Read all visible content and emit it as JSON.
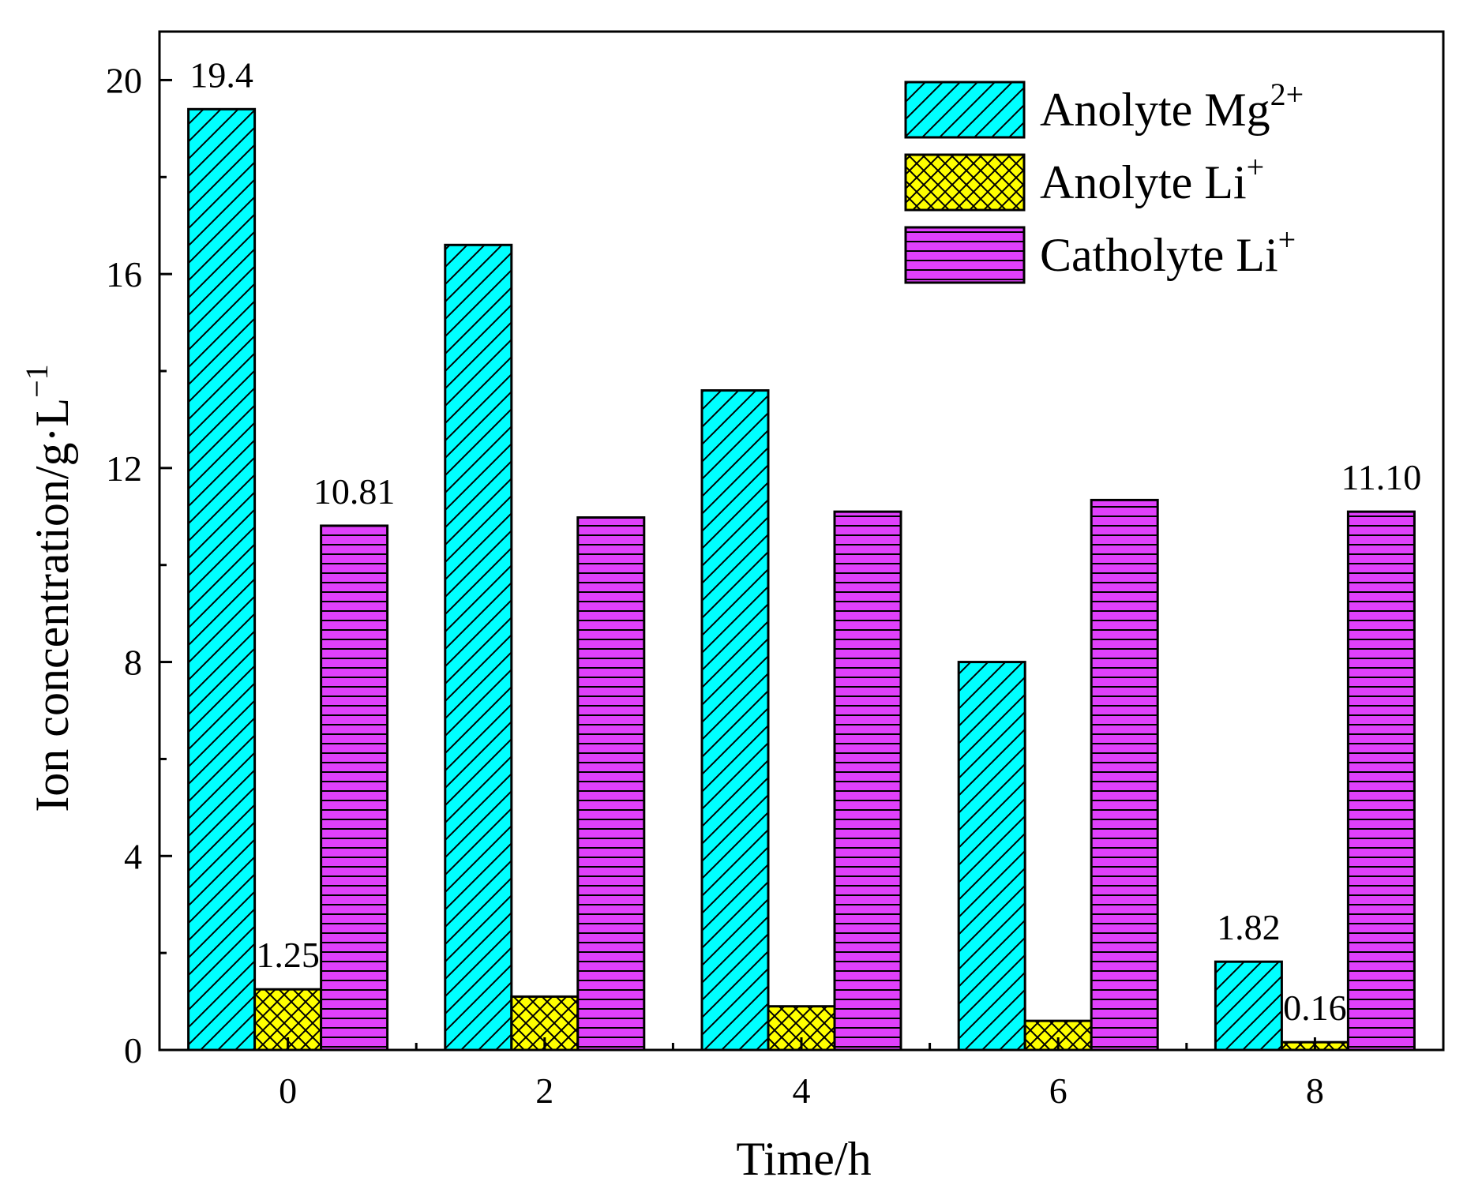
{
  "chart_data": {
    "type": "bar",
    "xlabel": "Time/h",
    "ylabel": "Ion concentration/g·L",
    "ylabel_sup": "−1",
    "categories": [
      "0",
      "2",
      "4",
      "6",
      "8"
    ],
    "ylim": [
      0,
      21
    ],
    "yticks": [
      0,
      4,
      8,
      12,
      16,
      20
    ],
    "yticks_labels": [
      "0",
      "4",
      "8",
      "12",
      "16",
      "20"
    ],
    "series": [
      {
        "name": "Anolyte Mg",
        "sup": "2+",
        "values": [
          19.4,
          16.6,
          13.6,
          8.0,
          1.82
        ],
        "color": "#00ffff",
        "pattern": "diagonal"
      },
      {
        "name": "Anolyte Li",
        "sup": "+",
        "values": [
          1.25,
          1.1,
          0.9,
          0.6,
          0.16
        ],
        "color": "#ffff00",
        "pattern": "crosshatch"
      },
      {
        "name": "Catholyte Li",
        "sup": "+",
        "values": [
          10.81,
          10.98,
          11.1,
          11.34,
          11.1
        ],
        "color": "#e040fb",
        "pattern": "horizontal"
      }
    ],
    "annotations": [
      {
        "series": 0,
        "index": 0,
        "text": "19.4"
      },
      {
        "series": 1,
        "index": 0,
        "text": "1.25"
      },
      {
        "series": 2,
        "index": 0,
        "text": "10.81"
      },
      {
        "series": 0,
        "index": 4,
        "text": "1.82"
      },
      {
        "series": 1,
        "index": 4,
        "text": "0.16"
      },
      {
        "series": 2,
        "index": 4,
        "text": "11.10"
      }
    ],
    "legend_position": "top-right"
  }
}
